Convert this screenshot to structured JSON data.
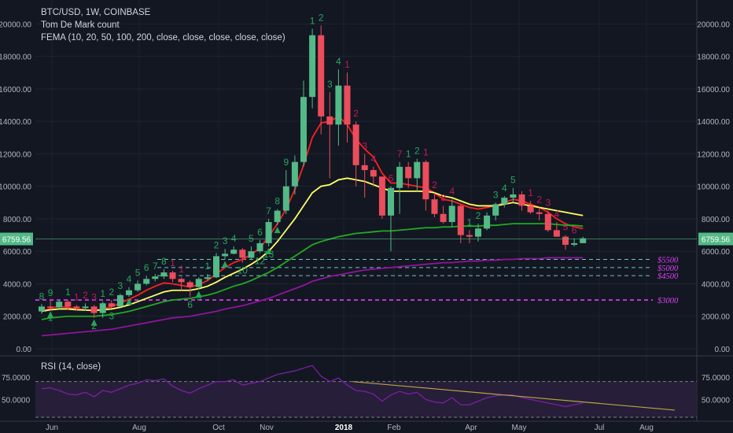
{
  "legend": {
    "symbol_line": "BTC/USD, 1W, COINBASE",
    "indicator1": "Tom De Mark count",
    "indicator2": "FEMA (10, 20, 50, 100, 200, close, close, close, close, close)"
  },
  "rsi_legend": "RSI (14, close)",
  "colors": {
    "background": "#131722",
    "up": "#53b987",
    "down": "#eb4d5c",
    "ema10": "#ff1f1f",
    "ema20": "#ffff66",
    "ema50": "#22aa22",
    "ema100": "#8e1599",
    "support": "#e040fb",
    "td_green": "#26a65b",
    "td_red": "#c2185b",
    "rsi_line": "#7b1fa2",
    "rsi_band": "#2a1f3d",
    "trendline": "#b5a642"
  },
  "last_price_label": "6759.56",
  "rsi_axis_labels": [
    "75.0000",
    "50.0000"
  ],
  "chart_data": [
    {
      "type": "candlestick",
      "title": "BTC/USD, 1W, COINBASE",
      "ylim": [
        0,
        20500
      ],
      "y_ticks": [
        "0.00",
        "2000.00",
        "4000.00",
        "6000.00",
        "8000.00",
        "10000.00",
        "12000.00",
        "14000.00",
        "16000.00",
        "18000.00",
        "20000.00"
      ],
      "x_ticks": [
        "Jun",
        "Aug",
        "Oct",
        "Nov",
        "2018",
        "Feb",
        "Apr",
        "May",
        "Jul",
        "Aug"
      ],
      "candles": [
        [
          2300,
          2600,
          2150,
          2750
        ],
        [
          2600,
          2550,
          2400,
          2950
        ],
        [
          2550,
          2900,
          2450,
          3000
        ],
        [
          2900,
          2600,
          2400,
          3000
        ],
        [
          2600,
          2500,
          2350,
          2700
        ],
        [
          2500,
          2600,
          2350,
          2800
        ],
        [
          2600,
          2200,
          1900,
          2700
        ],
        [
          2200,
          2800,
          1900,
          2900
        ],
        [
          2800,
          2600,
          2500,
          3000
        ],
        [
          2600,
          3300,
          2550,
          3400
        ],
        [
          3300,
          3600,
          3200,
          3800
        ],
        [
          3600,
          4000,
          3500,
          4200
        ],
        [
          4000,
          4300,
          3900,
          4500
        ],
        [
          4300,
          4450,
          4150,
          4600
        ],
        [
          4450,
          4700,
          4300,
          4900
        ],
        [
          4700,
          4300,
          4100,
          4800
        ],
        [
          4300,
          4100,
          3600,
          4400
        ],
        [
          4100,
          3800,
          3200,
          4200
        ],
        [
          3800,
          4300,
          3650,
          4400
        ],
        [
          4300,
          4400,
          4200,
          4600
        ],
        [
          4400,
          5700,
          4350,
          5900
        ],
        [
          5700,
          5850,
          5500,
          6150
        ],
        [
          5850,
          6100,
          5800,
          6300
        ],
        [
          6100,
          5600,
          5300,
          6200
        ],
        [
          5600,
          6000,
          5500,
          6300
        ],
        [
          6000,
          6500,
          5900,
          6700
        ],
        [
          6500,
          7800,
          6300,
          8000
        ],
        [
          7800,
          8500,
          7600,
          8600
        ],
        [
          8500,
          10000,
          8300,
          11000
        ],
        [
          10000,
          11500,
          9500,
          11900
        ],
        [
          11500,
          15500,
          11200,
          16500
        ],
        [
          15500,
          19300,
          14800,
          19700
        ],
        [
          19300,
          14300,
          13200,
          19900
        ],
        [
          14300,
          13800,
          10500,
          15800
        ],
        [
          13800,
          16200,
          12500,
          17200
        ],
        [
          16200,
          13800,
          12700,
          17000
        ],
        [
          13800,
          11300,
          10000,
          14000
        ],
        [
          11300,
          11000,
          9300,
          12000
        ],
        [
          11000,
          10600,
          10000,
          11200
        ],
        [
          10600,
          8200,
          8000,
          10500
        ],
        [
          8200,
          9900,
          6000,
          10000
        ],
        [
          9900,
          11200,
          8300,
          11500
        ],
        [
          11200,
          10500,
          9900,
          11500
        ],
        [
          10500,
          11500,
          9700,
          11700
        ],
        [
          11500,
          9200,
          8500,
          11600
        ],
        [
          9200,
          8300,
          8100,
          9600
        ],
        [
          8300,
          7800,
          7700,
          8800
        ],
        [
          7800,
          8800,
          7500,
          9200
        ],
        [
          8800,
          7000,
          6500,
          8900
        ],
        [
          7000,
          6900,
          6500,
          7300
        ],
        [
          6900,
          7400,
          6600,
          7700
        ],
        [
          7400,
          8200,
          7300,
          8400
        ],
        [
          8200,
          8900,
          7900,
          9000
        ],
        [
          8900,
          9300,
          8700,
          9400
        ],
        [
          9300,
          9500,
          9000,
          9900
        ],
        [
          9500,
          8800,
          8500,
          9700
        ],
        [
          8800,
          8400,
          8300,
          9100
        ],
        [
          8400,
          8300,
          7900,
          8700
        ],
        [
          8300,
          7300,
          7200,
          8500
        ],
        [
          7300,
          6900,
          6900,
          7800
        ],
        [
          6900,
          6400,
          6100,
          7000
        ],
        [
          6400,
          6500,
          6300,
          6800
        ],
        [
          6500,
          6800,
          6500,
          6900
        ]
      ],
      "series": [
        {
          "name": "FEMA 10",
          "values": [
            2300,
            2500,
            2600,
            2550,
            2450,
            2400,
            2350,
            2450,
            2600,
            2800,
            3050,
            3300,
            3600,
            3850,
            4050,
            4000,
            3900,
            3800,
            3950,
            4200,
            4600,
            5000,
            5300,
            5500,
            5800,
            6200,
            6900,
            7700,
            8600,
            9800,
            11300,
            13000,
            13900,
            14000,
            14300,
            13800,
            12900,
            12300,
            11800,
            10800,
            10200,
            10200,
            10100,
            10000,
            9900,
            9600,
            9200,
            9100,
            8900,
            8700,
            8600,
            8700,
            8800,
            9000,
            9200,
            9100,
            8900,
            8700,
            8400,
            8000,
            7700,
            7500,
            7400
          ]
        },
        {
          "name": "FEMA 20",
          "values": [
            2300,
            2400,
            2450,
            2450,
            2400,
            2380,
            2350,
            2400,
            2450,
            2550,
            2700,
            2900,
            3100,
            3300,
            3500,
            3600,
            3600,
            3600,
            3700,
            3850,
            4100,
            4400,
            4650,
            4900,
            5200,
            5550,
            6000,
            6600,
            7300,
            8000,
            8800,
            9600,
            10000,
            10100,
            10400,
            10500,
            10400,
            10300,
            10100,
            9900,
            9700,
            9700,
            9700,
            9700,
            9700,
            9600,
            9400,
            9300,
            9100,
            8900,
            8800,
            8800,
            8800,
            8900,
            9000,
            8900,
            8800,
            8700,
            8600,
            8500,
            8400,
            8300,
            8200
          ]
        },
        {
          "name": "FEMA 50",
          "values": [
            1800,
            1900,
            1950,
            2000,
            2000,
            2000,
            2000,
            2050,
            2100,
            2200,
            2300,
            2450,
            2600,
            2750,
            2900,
            3000,
            3050,
            3100,
            3200,
            3300,
            3450,
            3650,
            3850,
            4000,
            4200,
            4450,
            4700,
            5000,
            5350,
            5700,
            6050,
            6400,
            6600,
            6750,
            6900,
            7000,
            7100,
            7150,
            7200,
            7250,
            7250,
            7300,
            7350,
            7400,
            7450,
            7450,
            7500,
            7500,
            7550,
            7550,
            7550,
            7600,
            7600,
            7650,
            7700,
            7700,
            7700,
            7700,
            7700,
            7650,
            7600,
            7600,
            7550
          ]
        },
        {
          "name": "FEMA 100",
          "values": [
            800,
            850,
            900,
            950,
            1000,
            1050,
            1100,
            1150,
            1200,
            1300,
            1400,
            1500,
            1600,
            1700,
            1800,
            1900,
            1950,
            2000,
            2100,
            2200,
            2300,
            2450,
            2550,
            2650,
            2800,
            2950,
            3100,
            3300,
            3500,
            3700,
            3900,
            4150,
            4300,
            4450,
            4550,
            4650,
            4750,
            4850,
            4900,
            4950,
            5000,
            5050,
            5100,
            5150,
            5200,
            5250,
            5300,
            5300,
            5350,
            5400,
            5400,
            5450,
            5450,
            5500,
            5500,
            5550,
            5550,
            5550,
            5600,
            5600,
            5600,
            5600,
            5600
          ]
        }
      ],
      "support_levels": [
        {
          "label": "$5500",
          "value": 5500
        },
        {
          "label": "$5000",
          "value": 5000
        },
        {
          "label": "$4500",
          "value": 4500
        },
        {
          "label": "$3000",
          "value": 3000
        }
      ],
      "last_price": 6759.56
    },
    {
      "type": "line",
      "title": "RSI (14, close)",
      "ylim": [
        30,
        90
      ],
      "band": [
        30,
        70
      ],
      "y_ticks": [
        "75.0000",
        "50.0000"
      ],
      "values": [
        62,
        63,
        60,
        56,
        55,
        58,
        53,
        60,
        58,
        62,
        66,
        68,
        72,
        71,
        73,
        65,
        60,
        57,
        62,
        66,
        70,
        70,
        72,
        66,
        68,
        70,
        74,
        78,
        80,
        82,
        85,
        88,
        76,
        70,
        74,
        66,
        60,
        59,
        56,
        48,
        55,
        59,
        56,
        58,
        50,
        47,
        46,
        52,
        44,
        44,
        48,
        52,
        54,
        55,
        55,
        52,
        50,
        48,
        46,
        44,
        42,
        44,
        46
      ],
      "trendline": [
        {
          "x": 32,
          "y": 70
        },
        {
          "x": 75,
          "y": 38
        }
      ]
    }
  ],
  "td_counts": [
    {
      "i": 0,
      "text": "8",
      "c": "g",
      "pos": "above"
    },
    {
      "i": 1,
      "text": "9",
      "c": "g",
      "pos": "above"
    },
    {
      "i": 1,
      "text": "1",
      "c": "g",
      "pos": "below"
    },
    {
      "i": 3,
      "text": "1",
      "c": "g",
      "pos": "above"
    },
    {
      "i": 4,
      "text": "1",
      "c": "r",
      "pos": "above"
    },
    {
      "i": 5,
      "text": "2",
      "c": "r",
      "pos": "above"
    },
    {
      "i": 6,
      "text": "3",
      "c": "r",
      "pos": "above"
    },
    {
      "i": 6,
      "text": "2",
      "c": "g",
      "pos": "below"
    },
    {
      "i": 7,
      "text": "1",
      "c": "g",
      "pos": "above"
    },
    {
      "i": 8,
      "text": "2",
      "c": "g",
      "pos": "above"
    },
    {
      "i": 8,
      "text": "3",
      "c": "g",
      "pos": "below"
    },
    {
      "i": 9,
      "text": "3",
      "c": "g",
      "pos": "above"
    },
    {
      "i": 10,
      "text": "4",
      "c": "g",
      "pos": "above"
    },
    {
      "i": 11,
      "text": "5",
      "c": "g",
      "pos": "above"
    },
    {
      "i": 12,
      "text": "6",
      "c": "g",
      "pos": "above"
    },
    {
      "i": 13,
      "text": "7",
      "c": "g",
      "pos": "above"
    },
    {
      "i": 14,
      "text": "8",
      "c": "g",
      "pos": "above"
    },
    {
      "i": 15,
      "text": "1",
      "c": "r",
      "pos": "above"
    },
    {
      "i": 16,
      "text": "1",
      "c": "r",
      "pos": "above"
    },
    {
      "i": 17,
      "text": "6",
      "c": "g",
      "pos": "below"
    },
    {
      "i": 18,
      "text": "9",
      "c": "g",
      "pos": "below"
    },
    {
      "i": 19,
      "text": "1",
      "c": "g",
      "pos": "above"
    },
    {
      "i": 20,
      "text": "2",
      "c": "g",
      "pos": "above"
    },
    {
      "i": 21,
      "text": "3",
      "c": "g",
      "pos": "above"
    },
    {
      "i": 22,
      "text": "4",
      "c": "g",
      "pos": "above"
    },
    {
      "i": 23,
      "text": "10",
      "c": "g",
      "pos": "below"
    },
    {
      "i": 24,
      "text": "5",
      "c": "g",
      "pos": "above"
    },
    {
      "i": 25,
      "text": "6",
      "c": "g",
      "pos": "above"
    },
    {
      "i": 25,
      "text": "12",
      "c": "g",
      "pos": "below"
    },
    {
      "i": 26,
      "text": "13",
      "c": "g",
      "pos": "below"
    },
    {
      "i": 26,
      "text": "7",
      "c": "g",
      "pos": "above"
    },
    {
      "i": 27,
      "text": "8",
      "c": "g",
      "pos": "above"
    },
    {
      "i": 28,
      "text": "9",
      "c": "g",
      "pos": "above"
    },
    {
      "i": 31,
      "text": "1",
      "c": "g",
      "pos": "above"
    },
    {
      "i": 32,
      "text": "2",
      "c": "g",
      "pos": "above"
    },
    {
      "i": 33,
      "text": "3",
      "c": "g",
      "pos": "above"
    },
    {
      "i": 34,
      "text": "4",
      "c": "g",
      "pos": "above"
    },
    {
      "i": 35,
      "text": "1",
      "c": "r",
      "pos": "above"
    },
    {
      "i": 36,
      "text": "2",
      "c": "r",
      "pos": "above"
    },
    {
      "i": 37,
      "text": "3",
      "c": "r",
      "pos": "above"
    },
    {
      "i": 38,
      "text": "4",
      "c": "r",
      "pos": "above"
    },
    {
      "i": 40,
      "text": "6",
      "c": "r",
      "pos": "above"
    },
    {
      "i": 41,
      "text": "7",
      "c": "r",
      "pos": "above"
    },
    {
      "i": 42,
      "text": "1",
      "c": "g",
      "pos": "above"
    },
    {
      "i": 43,
      "text": "2",
      "c": "g",
      "pos": "above"
    },
    {
      "i": 44,
      "text": "1",
      "c": "r",
      "pos": "above"
    },
    {
      "i": 45,
      "text": "2",
      "c": "r",
      "pos": "above"
    },
    {
      "i": 46,
      "text": "3",
      "c": "r",
      "pos": "above"
    },
    {
      "i": 47,
      "text": "4",
      "c": "r",
      "pos": "above"
    },
    {
      "i": 49,
      "text": "1",
      "c": "g",
      "pos": "above"
    },
    {
      "i": 50,
      "text": "2",
      "c": "g",
      "pos": "above"
    },
    {
      "i": 52,
      "text": "3",
      "c": "g",
      "pos": "above"
    },
    {
      "i": 53,
      "text": "4",
      "c": "g",
      "pos": "above"
    },
    {
      "i": 54,
      "text": "5",
      "c": "g",
      "pos": "above"
    },
    {
      "i": 56,
      "text": "1",
      "c": "r",
      "pos": "above"
    },
    {
      "i": 57,
      "text": "2",
      "c": "r",
      "pos": "above"
    },
    {
      "i": 58,
      "text": "3",
      "c": "r",
      "pos": "above"
    },
    {
      "i": 59,
      "text": "4",
      "c": "r",
      "pos": "above"
    },
    {
      "i": 60,
      "text": "5",
      "c": "r",
      "pos": "above"
    },
    {
      "i": 61,
      "text": "6",
      "c": "r",
      "pos": "above"
    }
  ],
  "td_arrows": [
    1,
    6,
    10,
    18,
    21,
    26,
    27
  ]
}
